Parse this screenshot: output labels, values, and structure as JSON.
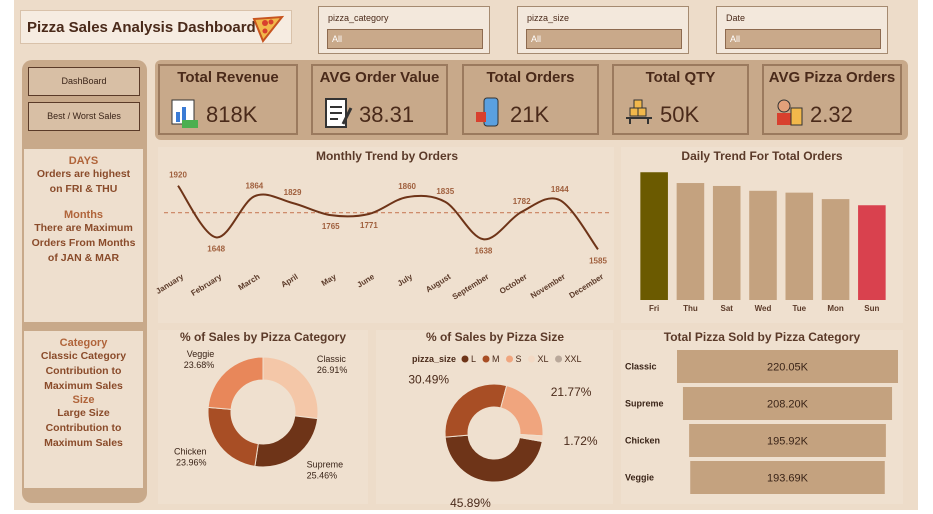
{
  "header": {
    "title": "Pizza Sales Analysis Dashboard"
  },
  "slicers": [
    {
      "label": "pizza_category",
      "value": "All"
    },
    {
      "label": "pizza_size",
      "value": "All"
    },
    {
      "label": "Date",
      "value": "All"
    }
  ],
  "buttons": [
    "DashBoard",
    "Best / Worst Sales"
  ],
  "kpis": [
    {
      "label": "Total Revenue",
      "value": "818K"
    },
    {
      "label": "AVG Order Value",
      "value": "38.31"
    },
    {
      "label": "Total Orders",
      "value": "21K"
    },
    {
      "label": "Total QTY",
      "value": "50K"
    },
    {
      "label": "AVG Pizza Orders",
      "value": "2.32"
    }
  ],
  "insights": [
    {
      "heading": "DAYS",
      "text": "Orders are highest on FRI & THU"
    },
    {
      "heading": "Months",
      "text": "There are Maximum Orders From Months of JAN & MAR"
    },
    {
      "heading": "Category",
      "text": "Classic Category Contribution to Maximum Sales"
    },
    {
      "heading": "Size",
      "text": "Large Size Contribution to Maximum Sales"
    }
  ],
  "chart_data": [
    {
      "type": "line",
      "title": "Monthly Trend by Orders",
      "categories": [
        "January",
        "February",
        "March",
        "April",
        "May",
        "June",
        "July",
        "August",
        "September",
        "October",
        "November",
        "December"
      ],
      "values": [
        1920,
        1648,
        1864,
        1829,
        1765,
        1771,
        1860,
        1835,
        1638,
        1782,
        1844,
        1585
      ],
      "average": 1778,
      "ylim": [
        1550,
        1950
      ],
      "color": "#6e3418"
    },
    {
      "type": "bar",
      "title": "Daily Trend For Total Orders",
      "categories": [
        "Fri",
        "Thu",
        "Sat",
        "Wed",
        "Tue",
        "Mon",
        "Sun"
      ],
      "values": [
        3538,
        3239,
        3158,
        3024,
        2973,
        2794,
        2624
      ],
      "ylim": [
        0,
        3600
      ],
      "colors": [
        "#6b5a00",
        "#c4a27f",
        "#c4a27f",
        "#c4a27f",
        "#c4a27f",
        "#c4a27f",
        "#d9414e"
      ]
    },
    {
      "type": "donut",
      "title": "% of Sales by Pizza Category",
      "categories": [
        "Classic",
        "Supreme",
        "Chicken",
        "Veggie"
      ],
      "values": [
        26.91,
        25.46,
        23.96,
        23.68
      ],
      "value_labels": [
        "26.91%",
        "25.46%",
        "23.96%",
        "23.68%"
      ],
      "colors": [
        "#f4c7a8",
        "#6e3418",
        "#a84e25",
        "#e8875a"
      ]
    },
    {
      "type": "donut",
      "title": "% of Sales by Pizza Size",
      "legend_title": "pizza_size",
      "categories": [
        "L",
        "M",
        "S",
        "XL",
        "XXL"
      ],
      "values": [
        45.89,
        30.49,
        21.77,
        1.72,
        0.13
      ],
      "value_labels": [
        "45.89%",
        "30.49%",
        "21.77%",
        "1.72%",
        null
      ],
      "colors": [
        "#6e3418",
        "#a84e25",
        "#f0a57e",
        "#f3d9c4",
        "#b9a89a"
      ]
    },
    {
      "type": "funnel",
      "title": "Total Pizza Sold by Pizza Category",
      "categories": [
        "Classic",
        "Supreme",
        "Chicken",
        "Veggie"
      ],
      "values": [
        220050,
        208200,
        195920,
        193690
      ],
      "value_labels": [
        "220.05K",
        "208.20K",
        "195.92K",
        "193.69K"
      ],
      "color": "#c4a27f"
    }
  ]
}
